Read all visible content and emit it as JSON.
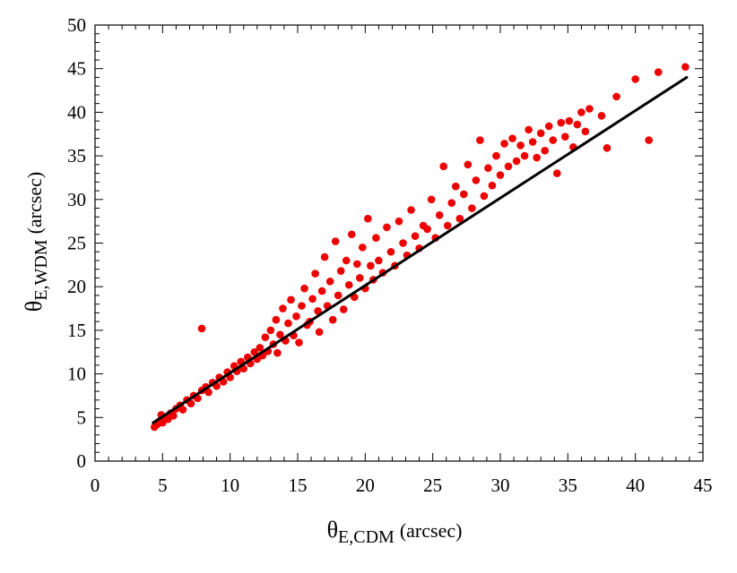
{
  "chart_data": {
    "type": "scatter",
    "title": "",
    "xlabel": {
      "symbol": "θ",
      "subscript": "E,CDM",
      "unit": "(arcsec)"
    },
    "ylabel": {
      "symbol": "θ",
      "subscript": "E,WDM",
      "unit": "(arcsec)"
    },
    "xlim": [
      0,
      45
    ],
    "ylim": [
      0,
      50
    ],
    "xticks": [
      "0",
      "5",
      "10",
      "15",
      "20",
      "25",
      "30",
      "35",
      "40",
      "45"
    ],
    "yticks": [
      "0",
      "5",
      "10",
      "15",
      "20",
      "25",
      "30",
      "35",
      "40",
      "45",
      "50"
    ],
    "grid": false,
    "legend": "none",
    "point_color": "#ee0000",
    "line_color": "#000000",
    "fit_line": {
      "x": [
        4.3,
        43.8
      ],
      "y": [
        4.4,
        44.0
      ]
    },
    "points": [
      [
        4.4,
        3.9
      ],
      [
        4.6,
        4.2
      ],
      [
        4.8,
        4.6
      ],
      [
        5.0,
        4.4
      ],
      [
        5.2,
        5.0
      ],
      [
        5.4,
        4.8
      ],
      [
        4.9,
        5.3
      ],
      [
        5.6,
        5.5
      ],
      [
        5.8,
        5.2
      ],
      [
        6.0,
        6.0
      ],
      [
        6.3,
        6.4
      ],
      [
        6.5,
        5.9
      ],
      [
        6.8,
        7.0
      ],
      [
        7.1,
        6.6
      ],
      [
        7.3,
        7.5
      ],
      [
        7.6,
        7.2
      ],
      [
        7.9,
        8.1
      ],
      [
        7.9,
        15.2
      ],
      [
        8.2,
        8.5
      ],
      [
        8.4,
        7.9
      ],
      [
        8.7,
        9.0
      ],
      [
        9.0,
        8.6
      ],
      [
        9.2,
        9.6
      ],
      [
        9.5,
        9.1
      ],
      [
        9.8,
        10.2
      ],
      [
        10.0,
        9.6
      ],
      [
        10.3,
        10.9
      ],
      [
        10.5,
        10.3
      ],
      [
        10.8,
        11.4
      ],
      [
        11.0,
        10.6
      ],
      [
        11.3,
        11.9
      ],
      [
        11.5,
        11.2
      ],
      [
        11.8,
        12.5
      ],
      [
        12.0,
        11.7
      ],
      [
        12.2,
        13.0
      ],
      [
        12.4,
        12.1
      ],
      [
        12.6,
        14.2
      ],
      [
        12.8,
        12.6
      ],
      [
        13.0,
        15.0
      ],
      [
        13.2,
        13.4
      ],
      [
        13.4,
        16.2
      ],
      [
        13.5,
        12.4
      ],
      [
        13.7,
        14.5
      ],
      [
        13.9,
        17.5
      ],
      [
        14.1,
        13.8
      ],
      [
        14.3,
        15.8
      ],
      [
        14.5,
        18.5
      ],
      [
        14.7,
        14.4
      ],
      [
        14.9,
        16.6
      ],
      [
        15.1,
        13.6
      ],
      [
        15.3,
        17.8
      ],
      [
        15.5,
        19.8
      ],
      [
        15.7,
        15.6
      ],
      [
        15.9,
        16.0
      ],
      [
        16.1,
        18.6
      ],
      [
        16.3,
        21.5
      ],
      [
        16.5,
        17.2
      ],
      [
        16.6,
        14.8
      ],
      [
        16.8,
        19.5
      ],
      [
        17.0,
        23.4
      ],
      [
        17.2,
        17.8
      ],
      [
        17.4,
        20.6
      ],
      [
        17.6,
        16.2
      ],
      [
        17.8,
        25.2
      ],
      [
        18.0,
        19.0
      ],
      [
        18.2,
        21.8
      ],
      [
        18.4,
        17.4
      ],
      [
        18.6,
        23.0
      ],
      [
        18.8,
        20.2
      ],
      [
        19.0,
        26.0
      ],
      [
        19.2,
        18.8
      ],
      [
        19.4,
        22.6
      ],
      [
        19.6,
        21.0
      ],
      [
        19.8,
        24.5
      ],
      [
        20.0,
        19.8
      ],
      [
        20.2,
        27.8
      ],
      [
        20.4,
        22.4
      ],
      [
        20.6,
        20.8
      ],
      [
        20.8,
        25.6
      ],
      [
        21.0,
        23.0
      ],
      [
        21.3,
        21.6
      ],
      [
        21.6,
        26.8
      ],
      [
        21.9,
        24.0
      ],
      [
        22.2,
        22.4
      ],
      [
        22.5,
        27.5
      ],
      [
        22.8,
        25.0
      ],
      [
        23.1,
        23.6
      ],
      [
        23.4,
        28.8
      ],
      [
        23.7,
        25.8
      ],
      [
        24.0,
        24.4
      ],
      [
        24.3,
        27.0
      ],
      [
        24.6,
        26.6
      ],
      [
        24.9,
        30.0
      ],
      [
        25.2,
        25.6
      ],
      [
        25.5,
        28.2
      ],
      [
        25.8,
        33.8
      ],
      [
        26.1,
        27.0
      ],
      [
        26.4,
        29.6
      ],
      [
        26.7,
        31.5
      ],
      [
        27.0,
        27.8
      ],
      [
        27.3,
        30.6
      ],
      [
        27.6,
        34.0
      ],
      [
        27.9,
        29.0
      ],
      [
        28.2,
        32.2
      ],
      [
        28.5,
        36.8
      ],
      [
        28.8,
        30.4
      ],
      [
        29.1,
        33.6
      ],
      [
        29.4,
        31.6
      ],
      [
        29.7,
        35.0
      ],
      [
        30.0,
        32.8
      ],
      [
        30.3,
        36.4
      ],
      [
        30.6,
        33.8
      ],
      [
        30.9,
        37.0
      ],
      [
        31.2,
        34.4
      ],
      [
        31.5,
        36.2
      ],
      [
        31.8,
        35.0
      ],
      [
        32.1,
        38.0
      ],
      [
        32.4,
        36.6
      ],
      [
        32.7,
        34.8
      ],
      [
        33.0,
        37.6
      ],
      [
        33.3,
        35.6
      ],
      [
        33.6,
        38.4
      ],
      [
        33.9,
        36.8
      ],
      [
        34.2,
        33.0
      ],
      [
        34.5,
        38.8
      ],
      [
        34.8,
        37.2
      ],
      [
        35.1,
        39.0
      ],
      [
        35.4,
        36.0
      ],
      [
        35.7,
        38.6
      ],
      [
        36.0,
        40.0
      ],
      [
        36.3,
        37.8
      ],
      [
        36.6,
        40.4
      ],
      [
        37.5,
        39.6
      ],
      [
        37.9,
        35.9
      ],
      [
        38.6,
        41.8
      ],
      [
        40.0,
        43.8
      ],
      [
        41.0,
        36.8
      ],
      [
        41.7,
        44.6
      ],
      [
        43.7,
        45.2
      ]
    ]
  }
}
